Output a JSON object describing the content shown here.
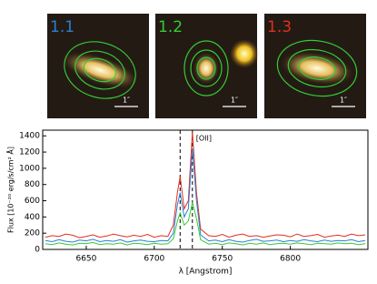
{
  "image_panels": [
    {
      "label": "1.1",
      "color": "#2a7fd4",
      "scale_label": "1″"
    },
    {
      "label": "1.2",
      "color": "#33cc33",
      "scale_label": "1″"
    },
    {
      "label": "1.3",
      "color": "#e03020",
      "scale_label": "1″"
    }
  ],
  "chart_data": {
    "type": "line",
    "xlabel": "λ [Angstrom]",
    "ylabel": "Flux [10⁻²⁰ erg/s/cm² Å]",
    "annotation": "[OII]",
    "dashed_lines": [
      6719,
      6728
    ],
    "x": [
      6620,
      6625,
      6630,
      6635,
      6640,
      6645,
      6650,
      6655,
      6660,
      6665,
      6670,
      6675,
      6680,
      6685,
      6690,
      6695,
      6700,
      6705,
      6710,
      6714,
      6717,
      6719,
      6722,
      6725,
      6728,
      6731,
      6734,
      6740,
      6745,
      6750,
      6755,
      6760,
      6765,
      6770,
      6775,
      6780,
      6785,
      6790,
      6795,
      6800,
      6805,
      6810,
      6815,
      6820,
      6825,
      6830,
      6835,
      6840,
      6845,
      6850,
      6855
    ],
    "series": [
      {
        "name": "1.3",
        "color": "#e03020",
        "values": [
          150,
          170,
          160,
          190,
          175,
          145,
          160,
          180,
          150,
          165,
          190,
          170,
          155,
          175,
          160,
          185,
          150,
          170,
          160,
          300,
          700,
          900,
          500,
          600,
          1450,
          700,
          250,
          170,
          160,
          185,
          150,
          175,
          190,
          160,
          170,
          150,
          165,
          180,
          175,
          155,
          190,
          160,
          170,
          185,
          150,
          165,
          175,
          160,
          190,
          170,
          180
        ]
      },
      {
        "name": "1.1",
        "color": "#2a7fd4",
        "values": [
          110,
          95,
          120,
          100,
          90,
          115,
          105,
          125,
          95,
          110,
          100,
          120,
          90,
          105,
          115,
          100,
          95,
          110,
          105,
          200,
          550,
          700,
          400,
          500,
          1250,
          600,
          180,
          105,
          115,
          95,
          120,
          100,
          90,
          110,
          125,
          100,
          105,
          115,
          95,
          110,
          100,
          120,
          105,
          95,
          115,
          100,
          110,
          105,
          120,
          95,
          110
        ]
      },
      {
        "name": "1.2",
        "color": "#33cc33",
        "values": [
          70,
          60,
          80,
          65,
          55,
          75,
          70,
          85,
          60,
          70,
          65,
          80,
          55,
          75,
          70,
          60,
          75,
          65,
          70,
          130,
          350,
          450,
          300,
          350,
          580,
          380,
          120,
          65,
          75,
          60,
          80,
          70,
          55,
          75,
          65,
          80,
          60,
          70,
          75,
          65,
          80,
          70,
          60,
          75,
          70,
          65,
          80,
          70,
          75,
          60,
          70
        ]
      }
    ],
    "xlim": [
      6618,
      6857
    ],
    "ylim": [
      0,
      1470
    ],
    "xticks": [
      6650,
      6700,
      6750,
      6800
    ],
    "yticks": [
      0,
      200,
      400,
      600,
      800,
      1000,
      1200,
      1400
    ],
    "grid": false
  }
}
